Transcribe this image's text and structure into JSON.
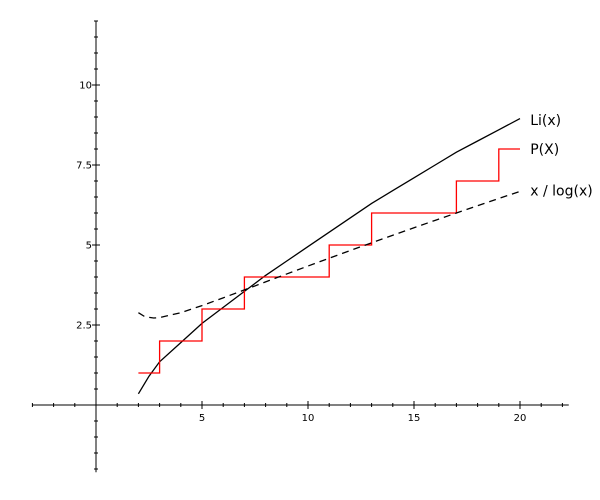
{
  "chart_data": {
    "type": "line",
    "title": "",
    "xlabel": "",
    "ylabel": "",
    "xlim": [
      -3,
      22.3
    ],
    "ylim": [
      -2.1,
      12
    ],
    "x_ticks": [
      5,
      10,
      15,
      20
    ],
    "y_ticks": [
      2.5,
      5,
      7.5,
      10
    ],
    "x_tick_labels": [
      "5",
      "10",
      "15",
      "20"
    ],
    "y_tick_labels": [
      "2.5",
      "5",
      "7.5",
      "10"
    ],
    "grid": false,
    "series": [
      {
        "name": "Li(x)",
        "style": "solid",
        "color": "#000000",
        "x": [
          2,
          2.5,
          3,
          4,
          5,
          6,
          7,
          8,
          9,
          10,
          11,
          12,
          13,
          14,
          15,
          16,
          17,
          18,
          19,
          20
        ],
        "y": [
          0.35,
          0.9,
          1.35,
          1.95,
          2.55,
          3.05,
          3.55,
          4.05,
          4.5,
          4.95,
          5.4,
          5.85,
          6.3,
          6.7,
          7.1,
          7.5,
          7.9,
          8.25,
          8.6,
          8.95
        ]
      },
      {
        "name": "P(X)",
        "style": "step",
        "color": "#ff0000",
        "x": [
          2,
          3,
          5,
          7,
          11,
          13,
          17,
          19,
          20
        ],
        "y": [
          1,
          2,
          3,
          4,
          5,
          6,
          7,
          8,
          8
        ]
      },
      {
        "name": "x / log(x)",
        "style": "dashed",
        "color": "#000000",
        "x": [
          2,
          2.3,
          2.718,
          3,
          4,
          5,
          6,
          7,
          8,
          9,
          10,
          11,
          12,
          13,
          14,
          15,
          16,
          17,
          18,
          19,
          20
        ],
        "y": [
          2.885,
          2.761,
          2.718,
          2.731,
          2.885,
          3.107,
          3.349,
          3.597,
          3.847,
          4.096,
          4.343,
          4.587,
          4.829,
          5.068,
          5.305,
          5.539,
          5.771,
          6.0,
          6.228,
          6.453,
          6.676
        ]
      }
    ],
    "legend": [
      {
        "label": "Li(x)",
        "x": 20.2,
        "y": 8.9
      },
      {
        "label": "P(X)",
        "x": 20.2,
        "y": 8.0
      },
      {
        "label": "x / log(x)",
        "x": 20.2,
        "y": 6.7
      }
    ]
  }
}
